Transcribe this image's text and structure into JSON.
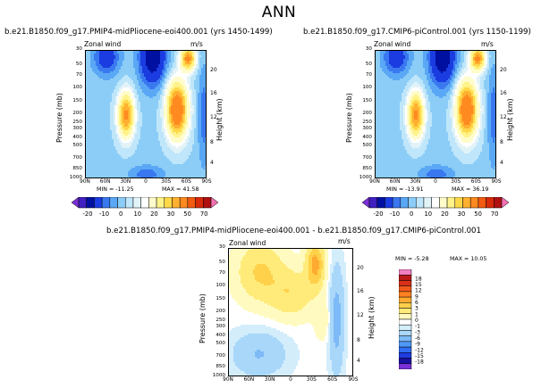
{
  "figure_title": "ANN",
  "colors": {
    "div1": [
      "#7b2fd6",
      "#4020c0",
      "#0010a0",
      "#1a3ce0",
      "#3a78f0",
      "#5aa8f5",
      "#8ccdf7",
      "#bfe6fa",
      "#e2f3f8",
      "#ffffff",
      "#fffccc",
      "#fff38a",
      "#ffd84a",
      "#ffb030",
      "#ff8a20",
      "#f25c10",
      "#d72a0a",
      "#b01010",
      "#f070b0"
    ],
    "div2": [
      "#7b2fd6",
      "#1a10a0",
      "#1f3ce0",
      "#2f6ef2",
      "#4f98f5",
      "#7dbaf7",
      "#a9d7fa",
      "#d3edfb",
      "#ffffff",
      "#fffbc0",
      "#ffeb7a",
      "#ffd04a",
      "#ffaa30",
      "#ff8020",
      "#f05a1a",
      "#d83018",
      "#b81818",
      "#f080c0"
    ]
  },
  "chart_data": [
    {
      "type": "heatmap",
      "title": "b.e21.B1850.f09_g17.PMIP4-midPliocene-eoi400.001 (yrs 1450-1499)",
      "left_label": "Zonal wind",
      "units": "m/s",
      "ylabel": "Pressure (mb)",
      "right_label": "Height (km)",
      "x_ticks": [
        "90N",
        "60N",
        "30N",
        "0",
        "30S",
        "60S",
        "90S"
      ],
      "y_ticks": [
        "30",
        "50",
        "70",
        "100",
        "150",
        "200",
        "250",
        "300",
        "400",
        "500",
        "700",
        "850",
        "1000"
      ],
      "height_ticks": [
        "20",
        "16",
        "12",
        "8",
        "4"
      ],
      "min_label": "MIN = -11.25",
      "max_label": "MAX = 41.58",
      "colorbar_labels": [
        "-20",
        "-10",
        "0",
        "10",
        "20",
        "30",
        "50",
        "70"
      ]
    },
    {
      "type": "heatmap",
      "title": "b.e21.B1850.f09_g17.CMIP6-piControl.001 (yrs 1150-1199)",
      "left_label": "Zonal wind",
      "units": "m/s",
      "ylabel": "Pressure (mb)",
      "right_label": "Height (km)",
      "x_ticks": [
        "90N",
        "60N",
        "30N",
        "0",
        "30S",
        "60S",
        "90S"
      ],
      "y_ticks": [
        "30",
        "50",
        "70",
        "100",
        "150",
        "200",
        "250",
        "300",
        "400",
        "500",
        "700",
        "850",
        "1000"
      ],
      "height_ticks": [
        "20",
        "16",
        "12",
        "8",
        "4"
      ],
      "min_label": "MIN = -13.91",
      "max_label": "MAX = 36.19",
      "colorbar_labels": [
        "-20",
        "-10",
        "0",
        "10",
        "20",
        "30",
        "50",
        "70"
      ]
    },
    {
      "type": "heatmap",
      "title": "b.e21.B1850.f09_g17.PMIP4-midPliocene-eoi400.001 - b.e21.B1850.f09_g17.CMIP6-piControl.001",
      "left_label": "Zonal wind",
      "units": "m/s",
      "ylabel": "Pressure (mb)",
      "right_label": "Height (km)",
      "x_ticks": [
        "90N",
        "60N",
        "30N",
        "0",
        "30S",
        "60S",
        "90S"
      ],
      "y_ticks": [
        "30",
        "50",
        "70",
        "100",
        "150",
        "200",
        "250",
        "300",
        "400",
        "500",
        "700",
        "850",
        "1000"
      ],
      "height_ticks": [
        "20",
        "16",
        "12",
        "8",
        "4"
      ],
      "min_label": "MIN = -5.28",
      "max_label": "MAX = 10.05",
      "colorbar_labels": [
        "18",
        "15",
        "12",
        "9",
        "6",
        "3",
        "1",
        "0",
        "-1",
        "-3",
        "-6",
        "-9",
        "-12",
        "-15",
        "-18"
      ]
    }
  ]
}
